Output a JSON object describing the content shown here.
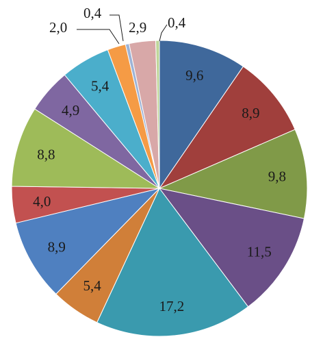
{
  "chart_data": {
    "type": "pie",
    "title": "",
    "slices": [
      {
        "label": "9,6",
        "value": 9.6,
        "color": "#3F689B"
      },
      {
        "label": "8,9",
        "value": 8.9,
        "color": "#A03F3C"
      },
      {
        "label": "9,8",
        "value": 9.8,
        "color": "#809A48"
      },
      {
        "label": "11,5",
        "value": 11.5,
        "color": "#6A4F87"
      },
      {
        "label": "17,2",
        "value": 17.2,
        "color": "#3A9AAE"
      },
      {
        "label": "5,4",
        "value": 5.4,
        "color": "#D07F39"
      },
      {
        "label": "8,9",
        "value": 8.9,
        "color": "#4F80C0"
      },
      {
        "label": "4,0",
        "value": 4.0,
        "color": "#C25150"
      },
      {
        "label": "8,8",
        "value": 8.8,
        "color": "#9EBB59"
      },
      {
        "label": "4,9",
        "value": 4.9,
        "color": "#7F67A1"
      },
      {
        "label": "5,4",
        "value": 5.4,
        "color": "#4BAECB"
      },
      {
        "label": "2,0",
        "value": 2.0,
        "color": "#F59B45"
      },
      {
        "label": "0,4",
        "value": 0.4,
        "color": "#9DB3D6"
      },
      {
        "label": "2,9",
        "value": 2.9,
        "color": "#D8A8A8"
      },
      {
        "label": "0,4",
        "value": 0.4,
        "color": "#BFD69A"
      }
    ],
    "start_angle_deg": 0,
    "direction": "clockwise",
    "legend": "none"
  }
}
